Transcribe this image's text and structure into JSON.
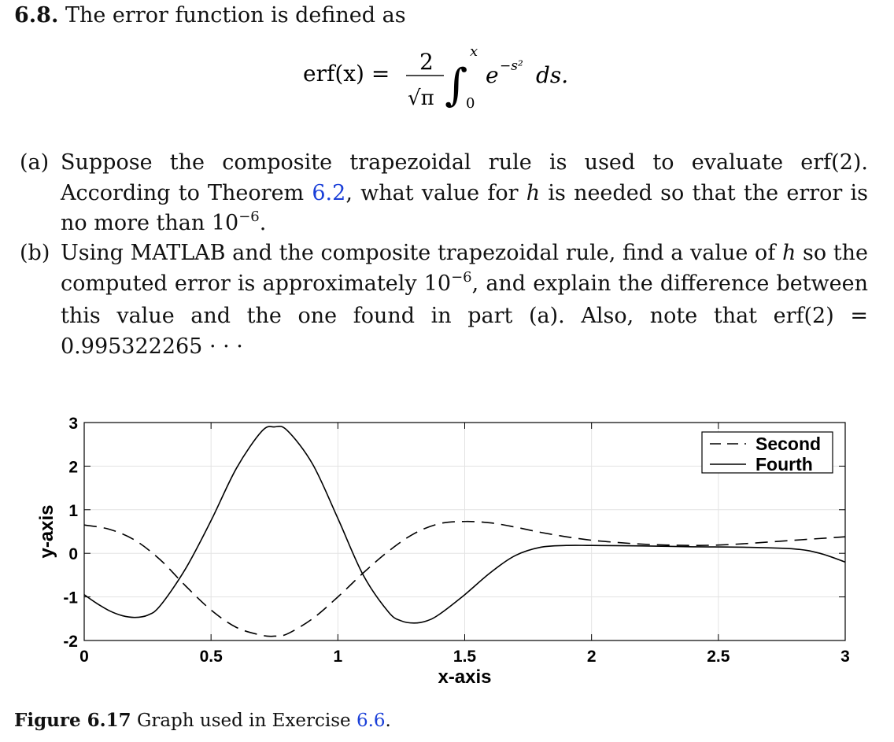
{
  "heading": {
    "number": "6.8.",
    "text": "The error function is defined as"
  },
  "formula": {
    "lhs": "erf(x) =",
    "numerator": "2",
    "denominator_sqrt": "√π",
    "integral": "∫",
    "upper": "x",
    "lower": "0",
    "integrand_base": "e",
    "integrand_exp": "−s²",
    "differential": "ds."
  },
  "part_a": {
    "label": "(a)",
    "text1": "Suppose the composite trapezoidal rule is used to evaluate erf(2). According to Theorem ",
    "ref": "6.2",
    "text2": ", what value for ",
    "var": "h",
    "text3": " is needed so that the error is no more than 10",
    "exp": "−6",
    "text4": "."
  },
  "part_b": {
    "label": "(b)",
    "text1": "Using MATLAB and the composite trapezoidal rule, find a value of ",
    "var": "h",
    "text2": " so the computed error is approximately 10",
    "exp": "−6",
    "text3": ", and explain the difference between this value and the one found in part (a). Also, note that erf(2) = 0.995322265 · · ·"
  },
  "caption": {
    "label": "Figure 6.17",
    "text": "Graph used in Exercise ",
    "ref": "6.6",
    "end": "."
  },
  "chart_data": {
    "type": "line",
    "xlabel": "x-axis",
    "ylabel": "y-axis",
    "xlim": [
      0,
      3
    ],
    "ylim": [
      -2,
      3
    ],
    "xticks": [
      "0",
      "0.5",
      "1",
      "1.5",
      "2",
      "2.5",
      "3"
    ],
    "yticks": [
      "-2",
      "-1",
      "0",
      "1",
      "2",
      "3"
    ],
    "grid": true,
    "legend_position": "top-right",
    "series": [
      {
        "name": "Second",
        "style": "dashed",
        "x": [
          0,
          0.1,
          0.2,
          0.3,
          0.4,
          0.5,
          0.6,
          0.7,
          0.75,
          0.8,
          0.9,
          1.0,
          1.1,
          1.2,
          1.3,
          1.4,
          1.5,
          1.6,
          1.7,
          1.8,
          1.9,
          2.0,
          2.1,
          2.2,
          2.3,
          2.4,
          2.5,
          2.6,
          2.7,
          2.8,
          2.9,
          3.0
        ],
        "y": [
          0.65,
          0.55,
          0.3,
          -0.15,
          -0.75,
          -1.3,
          -1.7,
          -1.88,
          -1.9,
          -1.85,
          -1.5,
          -1.0,
          -0.45,
          0.05,
          0.45,
          0.68,
          0.73,
          0.7,
          0.6,
          0.48,
          0.38,
          0.3,
          0.25,
          0.21,
          0.19,
          0.18,
          0.19,
          0.22,
          0.26,
          0.3,
          0.34,
          0.38
        ]
      },
      {
        "name": "Fourth",
        "style": "solid",
        "x": [
          0,
          0.05,
          0.1,
          0.15,
          0.2,
          0.25,
          0.3,
          0.4,
          0.5,
          0.6,
          0.7,
          0.75,
          0.8,
          0.9,
          1.0,
          1.1,
          1.2,
          1.25,
          1.3,
          1.35,
          1.4,
          1.5,
          1.6,
          1.7,
          1.8,
          1.9,
          2.0,
          2.2,
          2.4,
          2.6,
          2.8,
          2.9,
          3.0
        ],
        "y": [
          -0.95,
          -1.15,
          -1.32,
          -1.43,
          -1.47,
          -1.42,
          -1.2,
          -0.35,
          0.75,
          1.95,
          2.8,
          2.9,
          2.82,
          2.05,
          0.8,
          -0.5,
          -1.35,
          -1.55,
          -1.6,
          -1.55,
          -1.4,
          -0.95,
          -0.45,
          -0.05,
          0.14,
          0.18,
          0.18,
          0.17,
          0.15,
          0.14,
          0.1,
          0.0,
          -0.2
        ]
      }
    ]
  }
}
